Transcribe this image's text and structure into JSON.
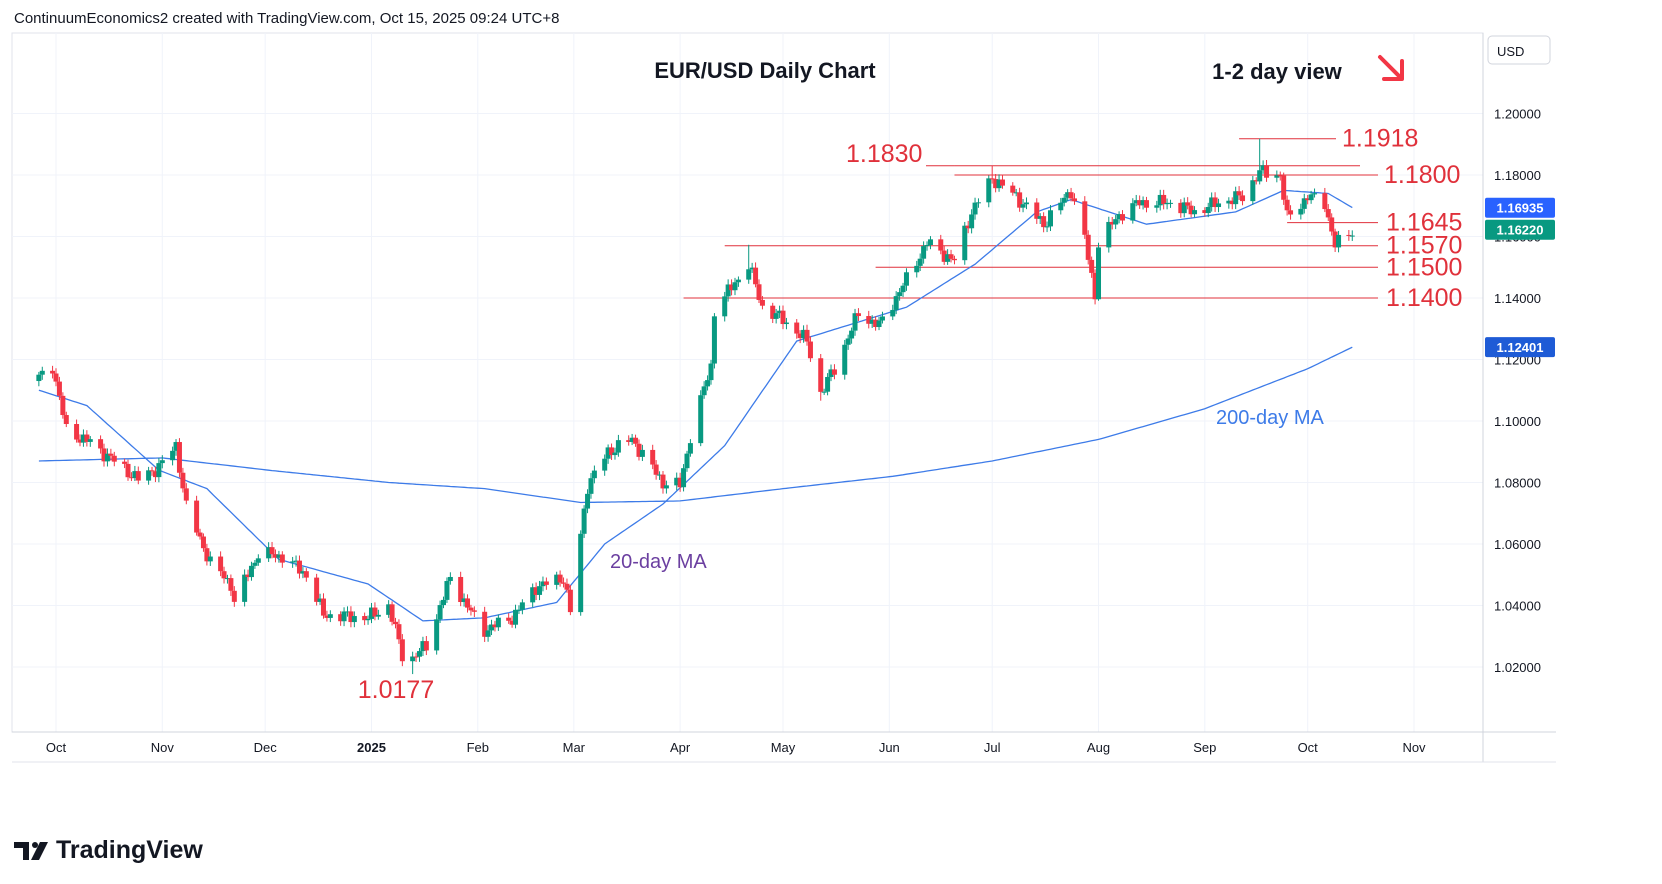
{
  "header": {
    "attribution": "ContinuumEconomics2 created with TradingView.com, Oct 15, 2025 09:24 UTC+8"
  },
  "brand": {
    "name": "TradingView"
  },
  "colors": {
    "up_candle": "#089981",
    "down_candle": "#f23645",
    "level_line": "#e0313b",
    "ma_line": "#3d7be8",
    "ma20_label": "#6b3fa0",
    "arrow": "#f23645",
    "price_badge_blue": "#2962ff",
    "price_badge_teal": "#089981",
    "price_badge_dark": "#1e5bd6"
  },
  "chart_data": {
    "type": "candlestick",
    "title": "EUR/USD Daily Chart",
    "subtitle": "1-2 day view",
    "subtitle_icon": "arrow-down-right-icon",
    "currency": "USD",
    "ylim": [
      1.0,
      1.2
    ],
    "grid": true,
    "y_ticks": [
      "1.20000",
      "1.18000",
      "1.16000",
      "1.14000",
      "1.12000",
      "1.10000",
      "1.08000",
      "1.06000",
      "1.04000",
      "1.02000"
    ],
    "x_ticks": [
      "Oct",
      "Nov",
      "Dec",
      "2025",
      "Feb",
      "Mar",
      "Apr",
      "May",
      "Jun",
      "Jul",
      "Aug",
      "Sep",
      "Oct",
      "Nov"
    ],
    "levels": [
      {
        "label": "1.1918",
        "value": 1.1918,
        "start": "2025-09-11"
      },
      {
        "label": "1.1830",
        "value": 1.183,
        "start": "2025-06-20"
      },
      {
        "label": "1.1800",
        "value": 1.18,
        "start": "2025-06-20"
      },
      {
        "label": "1.1645",
        "value": 1.1645,
        "start": "2025-09-25"
      },
      {
        "label": "1.1570",
        "value": 1.157,
        "start": "2025-04-14"
      },
      {
        "label": "1.1500",
        "value": 1.15,
        "start": "2025-05-28"
      },
      {
        "label": "1.1400",
        "value": 1.14,
        "start": "2025-04-02"
      }
    ],
    "low_annotation": {
      "label": "1.0177",
      "value": 1.0177,
      "date": "2025-01-13"
    },
    "series_labels": {
      "ma20": "20-day MA",
      "ma200": "200-day MA"
    },
    "price_badges": [
      {
        "label": "1.16935",
        "value": 1.16935,
        "role": "20-day MA"
      },
      {
        "label": "1.16220",
        "value": 1.1622,
        "role": "last close"
      },
      {
        "label": "1.12401",
        "value": 1.12401,
        "role": "200-day MA"
      }
    ],
    "close_anchors": [
      [
        "2024-09-26",
        1.114
      ],
      [
        "2024-09-30",
        1.118
      ],
      [
        "2024-10-04",
        1.097
      ],
      [
        "2024-10-11",
        1.093
      ],
      [
        "2024-10-18",
        1.087
      ],
      [
        "2024-10-25",
        1.081
      ],
      [
        "2024-10-31",
        1.085
      ],
      [
        "2024-11-05",
        1.092
      ],
      [
        "2024-11-08",
        1.072
      ],
      [
        "2024-11-15",
        1.054
      ],
      [
        "2024-11-21",
        1.047
      ],
      [
        "2024-11-22",
        1.041
      ],
      [
        "2024-11-29",
        1.057
      ],
      [
        "2024-12-06",
        1.056
      ],
      [
        "2024-12-13",
        1.05
      ],
      [
        "2024-12-18",
        1.037
      ],
      [
        "2024-12-31",
        1.036
      ],
      [
        "2025-01-06",
        1.04
      ],
      [
        "2025-01-10",
        1.024
      ],
      [
        "2025-01-13",
        1.023
      ],
      [
        "2025-01-17",
        1.027
      ],
      [
        "2025-01-24",
        1.049
      ],
      [
        "2025-01-31",
        1.036
      ],
      [
        "2025-02-03",
        1.032
      ],
      [
        "2025-02-11",
        1.036
      ],
      [
        "2025-02-18",
        1.046
      ],
      [
        "2025-02-26",
        1.049
      ],
      [
        "2025-02-28",
        1.038
      ],
      [
        "2025-03-05",
        1.079
      ],
      [
        "2025-03-11",
        1.09
      ],
      [
        "2025-03-18",
        1.094
      ],
      [
        "2025-03-27",
        1.08
      ],
      [
        "2025-04-01",
        1.079
      ],
      [
        "2025-04-04",
        1.095
      ],
      [
        "2025-04-10",
        1.118
      ],
      [
        "2025-04-11",
        1.136
      ],
      [
        "2025-04-21",
        1.151
      ],
      [
        "2025-04-25",
        1.137
      ],
      [
        "2025-05-01",
        1.133
      ],
      [
        "2025-05-08",
        1.126
      ],
      [
        "2025-05-12",
        1.109
      ],
      [
        "2025-05-16",
        1.117
      ],
      [
        "2025-05-23",
        1.135
      ],
      [
        "2025-05-29",
        1.131
      ],
      [
        "2025-06-05",
        1.144
      ],
      [
        "2025-06-12",
        1.158
      ],
      [
        "2025-06-20",
        1.152
      ],
      [
        "2025-06-25",
        1.168
      ],
      [
        "2025-07-01",
        1.179
      ],
      [
        "2025-07-08",
        1.173
      ],
      [
        "2025-07-16",
        1.164
      ],
      [
        "2025-07-24",
        1.175
      ],
      [
        "2025-07-28",
        1.159
      ],
      [
        "2025-07-31",
        1.141
      ],
      [
        "2025-08-01",
        1.158
      ],
      [
        "2025-08-07",
        1.167
      ],
      [
        "2025-08-13",
        1.171
      ],
      [
        "2025-08-22",
        1.171
      ],
      [
        "2025-08-29",
        1.168
      ],
      [
        "2025-09-05",
        1.171
      ],
      [
        "2025-09-12",
        1.173
      ],
      [
        "2025-09-17",
        1.181
      ],
      [
        "2025-09-23",
        1.18
      ],
      [
        "2025-09-25",
        1.166
      ],
      [
        "2025-10-01",
        1.173
      ],
      [
        "2025-10-06",
        1.171
      ],
      [
        "2025-10-09",
        1.157
      ],
      [
        "2025-10-14",
        1.162
      ]
    ],
    "ma20_anchors": [
      [
        "2024-09-26",
        1.11
      ],
      [
        "2024-10-10",
        1.105
      ],
      [
        "2024-10-31",
        1.084
      ],
      [
        "2024-11-14",
        1.078
      ],
      [
        "2024-12-05",
        1.055
      ],
      [
        "2024-12-31",
        1.047
      ],
      [
        "2025-01-16",
        1.035
      ],
      [
        "2025-02-03",
        1.036
      ],
      [
        "2025-02-24",
        1.041
      ],
      [
        "2025-03-10",
        1.06
      ],
      [
        "2025-03-27",
        1.073
      ],
      [
        "2025-04-14",
        1.092
      ],
      [
        "2025-05-05",
        1.126
      ],
      [
        "2025-06-06",
        1.137
      ],
      [
        "2025-06-26",
        1.151
      ],
      [
        "2025-07-14",
        1.168
      ],
      [
        "2025-07-24",
        1.172
      ],
      [
        "2025-08-15",
        1.164
      ],
      [
        "2025-09-10",
        1.168
      ],
      [
        "2025-09-24",
        1.175
      ],
      [
        "2025-10-07",
        1.174
      ],
      [
        "2025-10-14",
        1.1694
      ]
    ],
    "ma200_anchors": [
      [
        "2024-09-26",
        1.087
      ],
      [
        "2024-11-01",
        1.088
      ],
      [
        "2024-12-02",
        1.084
      ],
      [
        "2025-01-06",
        1.08
      ],
      [
        "2025-02-03",
        1.078
      ],
      [
        "2025-03-03",
        1.0735
      ],
      [
        "2025-04-01",
        1.074
      ],
      [
        "2025-05-01",
        1.078
      ],
      [
        "2025-06-02",
        1.082
      ],
      [
        "2025-07-01",
        1.087
      ],
      [
        "2025-08-01",
        1.094
      ],
      [
        "2025-09-01",
        1.104
      ],
      [
        "2025-10-01",
        1.117
      ],
      [
        "2025-10-14",
        1.124
      ]
    ],
    "notable_points": {
      "2025-01-13": {
        "low": 1.0177
      },
      "2025-09-17": {
        "high": 1.1918
      },
      "2025-07-01": {
        "high": 1.183
      },
      "2025-04-21": {
        "high": 1.1573
      },
      "2025-08-01": {
        "low": 1.1391
      },
      "2025-05-12": {
        "low": 1.1066
      }
    }
  }
}
